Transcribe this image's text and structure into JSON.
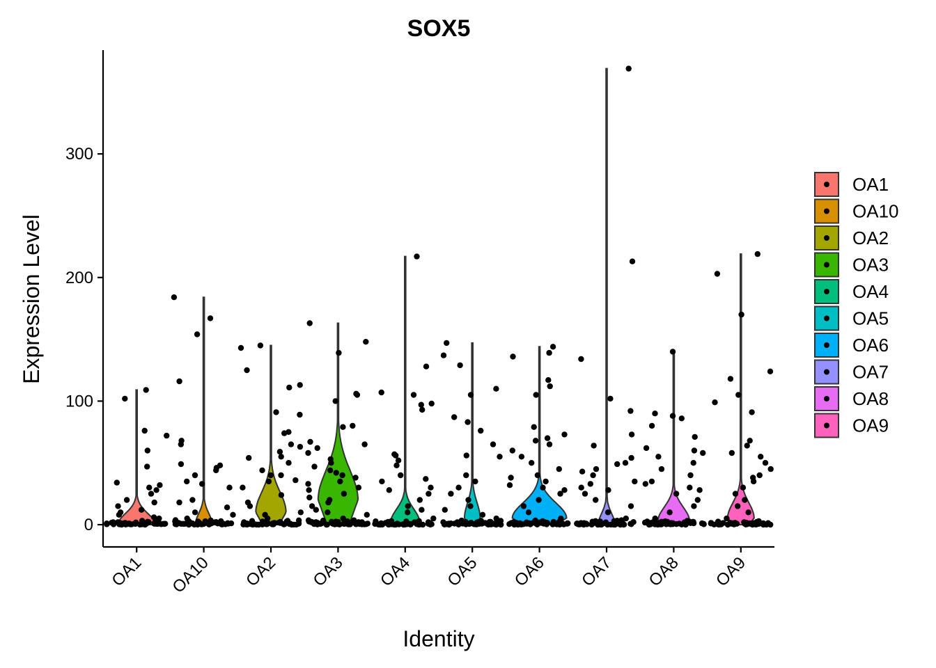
{
  "chart_data": {
    "type": "violin",
    "title": "SOX5",
    "xlabel": "Identity",
    "ylabel": "Expression Level",
    "ylim": [
      -18,
      384
    ],
    "yticks": [
      0,
      100,
      200,
      300
    ],
    "categories": [
      "OA1",
      "OA10",
      "OA2",
      "OA3",
      "OA4",
      "OA5",
      "OA6",
      "OA7",
      "OA8",
      "OA9"
    ],
    "colors": [
      "#F8766D",
      "#D89000",
      "#A3A500",
      "#39B600",
      "#00BF7D",
      "#00BFC4",
      "#00B0F6",
      "#9590FF",
      "#E76BF3",
      "#FF62BC"
    ],
    "legend": {
      "position": "right",
      "entries": [
        "OA1",
        "OA10",
        "OA2",
        "OA3",
        "OA4",
        "OA5",
        "OA6",
        "OA7",
        "OA8",
        "OA9"
      ]
    },
    "grid": false,
    "series": [
      {
        "name": "OA1",
        "max": 109,
        "density_peak": 0,
        "density_width": 0.62,
        "points": [
          109,
          102,
          76,
          72,
          60,
          47,
          34,
          32,
          30,
          28,
          25,
          20,
          18,
          15,
          12,
          10,
          8,
          6,
          5,
          3,
          2,
          1
        ]
      },
      {
        "name": "OA10",
        "max": 184,
        "density_peak": 0,
        "density_width": 0.28,
        "points": [
          184,
          167,
          154,
          116,
          68,
          65,
          49,
          48,
          46,
          44,
          40,
          35,
          33,
          30,
          20,
          18,
          14,
          10,
          8,
          5,
          3,
          1
        ]
      },
      {
        "name": "OA2",
        "max": 145,
        "density_peak": 10,
        "density_width": 0.5,
        "points": [
          145,
          143,
          125,
          113,
          111,
          91,
          89,
          75,
          74,
          65,
          63,
          59,
          55,
          54,
          50,
          44,
          40,
          40,
          36,
          35,
          30,
          24,
          18,
          15,
          10,
          8,
          5,
          2
        ]
      },
      {
        "name": "OA3",
        "max": 163,
        "density_peak": 20,
        "density_width": 0.66,
        "points": [
          163,
          148,
          139,
          106,
          105,
          100,
          80,
          79,
          67,
          65,
          62,
          58,
          53,
          50,
          47,
          44,
          42,
          40,
          38,
          35,
          33,
          30,
          28,
          25,
          22,
          20,
          18,
          15,
          12,
          10,
          8,
          5
        ]
      },
      {
        "name": "OA4",
        "max": 217,
        "density_peak": 2,
        "density_width": 0.48,
        "points": [
          217,
          128,
          107,
          105,
          98,
          97,
          93,
          57,
          56,
          52,
          48,
          40,
          37,
          35,
          30,
          28,
          25,
          20,
          15,
          12,
          10,
          5,
          2
        ]
      },
      {
        "name": "OA5",
        "max": 147,
        "density_peak": 5,
        "density_width": 0.26,
        "points": [
          147,
          137,
          129,
          110,
          105,
          87,
          83,
          76,
          65,
          56,
          55,
          40,
          35,
          30,
          25,
          20,
          15,
          12,
          8,
          5,
          2
        ]
      },
      {
        "name": "OA6",
        "max": 144,
        "density_peak": 5,
        "density_width": 0.9,
        "points": [
          144,
          139,
          136,
          117,
          112,
          105,
          79,
          73,
          70,
          68,
          65,
          60,
          55,
          50,
          45,
          40,
          38,
          35,
          32,
          30,
          28,
          25,
          20,
          15,
          10,
          5
        ]
      },
      {
        "name": "OA7",
        "max": 369,
        "density_peak": 0,
        "density_width": 0.28,
        "points": [
          369,
          213,
          134,
          102,
          92,
          73,
          64,
          54,
          50,
          49,
          45,
          43,
          40,
          35,
          33,
          30,
          28,
          25,
          20,
          15,
          10,
          5,
          2
        ]
      },
      {
        "name": "OA8",
        "max": 140,
        "density_peak": 3,
        "density_width": 0.52,
        "points": [
          140,
          90,
          88,
          86,
          80,
          71,
          62,
          60,
          58,
          55,
          50,
          45,
          40,
          35,
          33,
          30,
          28,
          25,
          20,
          15,
          10,
          5,
          2
        ]
      },
      {
        "name": "OA9",
        "max": 219,
        "density_peak": 5,
        "density_width": 0.44,
        "points": [
          219,
          203,
          170,
          124,
          118,
          105,
          99,
          91,
          68,
          64,
          58,
          55,
          50,
          45,
          40,
          38,
          35,
          30,
          25,
          20,
          15,
          10,
          5,
          2
        ]
      }
    ]
  }
}
